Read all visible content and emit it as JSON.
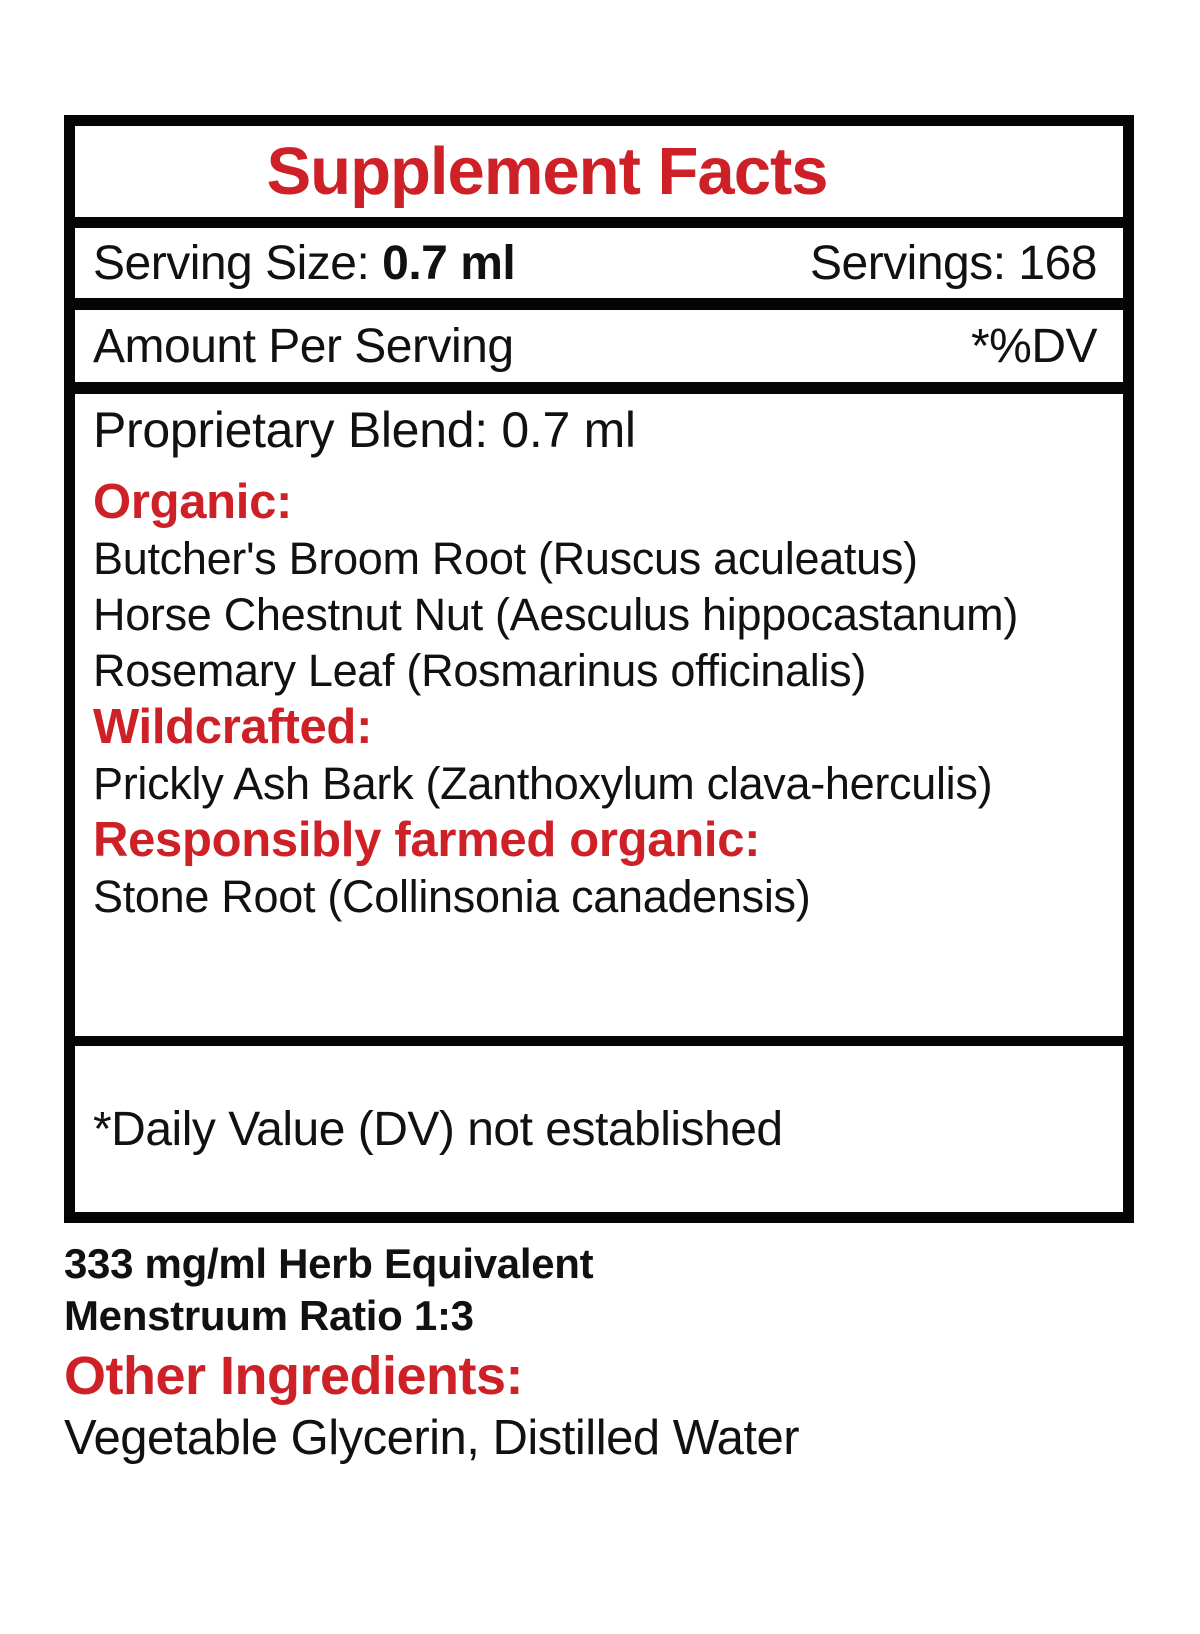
{
  "colors": {
    "accent_red": "#ce2127",
    "text_black": "#111111",
    "border_black": "#050505"
  },
  "panel": {
    "title": "Supplement Facts",
    "serving": {
      "label": "Serving Size: ",
      "size_value": "0.7 ml",
      "servings": "Servings: 168"
    },
    "amount": {
      "left": "Amount Per Serving",
      "right": "*%DV"
    },
    "blend": {
      "heading": "Proprietary Blend: 0.7 ml",
      "groups": [
        {
          "heading": "Organic:",
          "items": [
            "Butcher's Broom Root (Ruscus aculeatus)",
            "Horse Chestnut Nut (Aesculus hippocastanum)",
            "Rosemary Leaf (Rosmarinus officinalis)"
          ]
        },
        {
          "heading": "Wildcrafted:",
          "items": [
            "Prickly Ash Bark (Zanthoxylum clava-herculis)"
          ]
        },
        {
          "heading": "Responsibly farmed organic:",
          "items": [
            "Stone Root (Collinsonia canadensis)"
          ]
        }
      ]
    },
    "footnote": "*Daily Value (DV) not established"
  },
  "notes": {
    "herb_equivalent": "333 mg/ml Herb Equivalent",
    "menstruum_ratio": "Menstruum Ratio 1:3"
  },
  "other_ingredients": {
    "heading": "Other Ingredients:",
    "value": "Vegetable Glycerin, Distilled Water"
  }
}
